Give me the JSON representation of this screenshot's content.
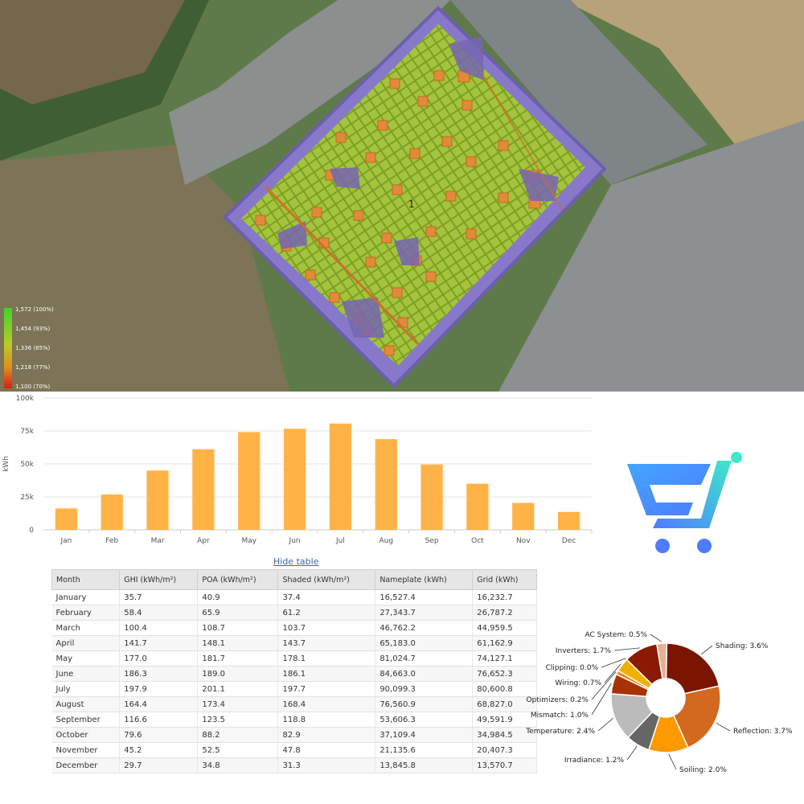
{
  "heatmap_legend": {
    "labels": [
      "1,572 (100%)",
      "1,454 (93%)",
      "1,336 (85%)",
      "1,218 (77%)",
      "1,100 (70%)"
    ]
  },
  "array_marker": "1",
  "colors": {
    "bar": "#ffb347",
    "roof_panel": "#8fb02a",
    "roof_deck": "#8878c9",
    "link": "#2a6ebb"
  },
  "hide_table_label": "Hide table",
  "chart_data": [
    {
      "type": "bar",
      "categories": [
        "Jan",
        "Feb",
        "Mar",
        "Apr",
        "May",
        "Jun",
        "Jul",
        "Aug",
        "Sep",
        "Oct",
        "Nov",
        "Dec"
      ],
      "values": [
        16232.7,
        26787.2,
        44959.5,
        61162.9,
        74127.1,
        76652.3,
        80600.8,
        68827.0,
        49591.9,
        34984.5,
        20407.3,
        13570.7
      ],
      "ylabel": "kWh",
      "ylim": [
        0,
        100000
      ],
      "yticks": [
        "0",
        "25k",
        "50k",
        "75k",
        "100k"
      ],
      "grid": true
    },
    {
      "type": "table",
      "columns": [
        "Month",
        "GHI (kWh/m²)",
        "POA (kWh/m²)",
        "Shaded (kWh/m²)",
        "Nameplate (kWh)",
        "Grid (kWh)"
      ],
      "rows": [
        [
          "January",
          "35.7",
          "40.9",
          "37.4",
          "16,527.4",
          "16,232.7"
        ],
        [
          "February",
          "58.4",
          "65.9",
          "61.2",
          "27,343.7",
          "26,787.2"
        ],
        [
          "March",
          "100.4",
          "108.7",
          "103.7",
          "46,762.2",
          "44,959.5"
        ],
        [
          "April",
          "141.7",
          "148.1",
          "143.7",
          "65,183.0",
          "61,162.9"
        ],
        [
          "May",
          "177.0",
          "181.7",
          "178.1",
          "81,024.7",
          "74,127.1"
        ],
        [
          "June",
          "186.3",
          "189.0",
          "186.1",
          "84,663.0",
          "76,652.3"
        ],
        [
          "July",
          "197.9",
          "201.1",
          "197.7",
          "90,099.3",
          "80,600.8"
        ],
        [
          "August",
          "164.4",
          "173.4",
          "168.4",
          "76,560.9",
          "68,827.0"
        ],
        [
          "September",
          "116.6",
          "123.5",
          "118.8",
          "53,606.3",
          "49,591.9"
        ],
        [
          "October",
          "79.6",
          "88.2",
          "82.9",
          "37,109.4",
          "34,984.5"
        ],
        [
          "November",
          "45.2",
          "52.5",
          "47.8",
          "21,135.6",
          "20,407.3"
        ],
        [
          "December",
          "29.7",
          "34.8",
          "31.3",
          "13,845.8",
          "13,570.7"
        ]
      ]
    },
    {
      "type": "pie",
      "slices": [
        {
          "label": "Shading: 3.6%",
          "value": 3.6,
          "color": "#7a1500"
        },
        {
          "label": "Reflection: 3.7%",
          "value": 3.7,
          "color": "#d2691e"
        },
        {
          "label": "Soiling: 2.0%",
          "value": 2.0,
          "color": "#ff9900"
        },
        {
          "label": "Irradiance: 1.2%",
          "value": 1.2,
          "color": "#666666"
        },
        {
          "label": "Temperature: 2.4%",
          "value": 2.4,
          "color": "#bbbbbb"
        },
        {
          "label": "Mismatch: 1.0%",
          "value": 1.0,
          "color": "#a83200"
        },
        {
          "label": "Optimizers: 0.2%",
          "value": 0.2,
          "color": "#ff7f00"
        },
        {
          "label": "Wiring: 0.7%",
          "value": 0.7,
          "color": "#f0b000"
        },
        {
          "label": "Clipping: 0.0%",
          "value": 0.0,
          "color": "#e0d000"
        },
        {
          "label": "Inverters: 1.7%",
          "value": 1.7,
          "color": "#8a1a00"
        },
        {
          "label": "AC System: 0.5%",
          "value": 0.5,
          "color": "#e8b090"
        }
      ]
    }
  ]
}
